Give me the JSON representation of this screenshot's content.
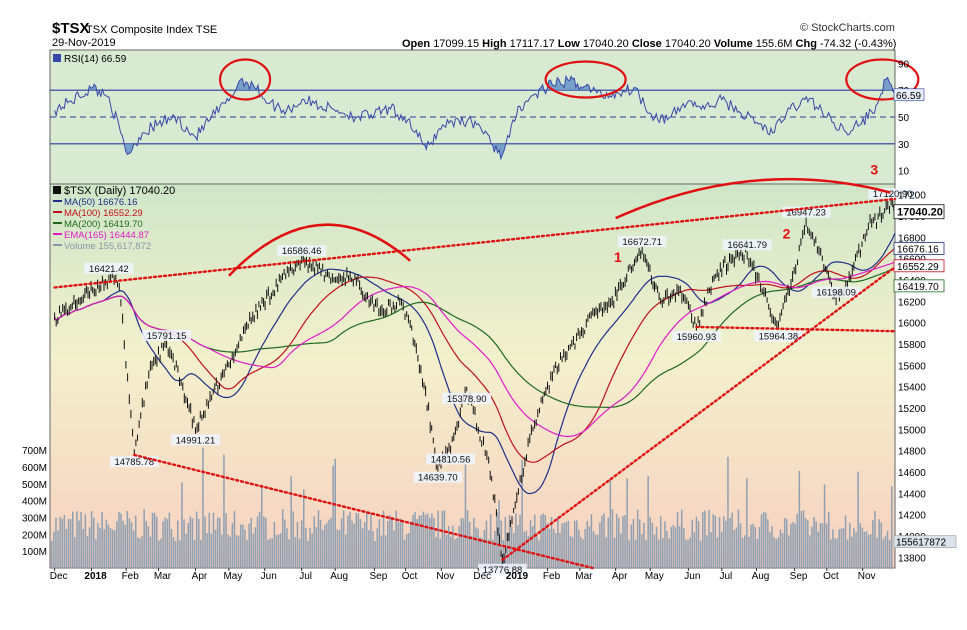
{
  "header": {
    "symbol": "$TSX",
    "name": "TSX Composite Index  TSE",
    "date": "29-Nov-2019",
    "open_label": "Open",
    "open": "17099.15",
    "high_label": "High",
    "high": "17117.17",
    "low_label": "Low",
    "low": "17040.20",
    "close_label": "Close",
    "close": "17040.20",
    "volume_label": "Volume",
    "volume": "155.6M",
    "chg_label": "Chg",
    "chg": "-74.32 (-0.43%)",
    "watermark": "© StockCharts.com"
  },
  "chart_data": [
    {
      "type": "line",
      "panel": "RSI",
      "legend": "RSI(14) 66.59",
      "last_value_label": "66.59",
      "yticks": [
        10,
        30,
        50,
        70,
        90
      ],
      "ylim": [
        0,
        100
      ],
      "overbought": 70,
      "oversold": 30,
      "midline": 50,
      "x": [
        "2017-12-01",
        "2017-12-15",
        "2018-01-03",
        "2018-01-17",
        "2018-02-02",
        "2018-02-15",
        "2018-03-01",
        "2018-03-15",
        "2018-04-02",
        "2018-04-16",
        "2018-05-01",
        "2018-05-11",
        "2018-05-22",
        "2018-06-05",
        "2018-06-20",
        "2018-07-05",
        "2018-07-20",
        "2018-08-03",
        "2018-08-20",
        "2018-09-04",
        "2018-09-18",
        "2018-10-03",
        "2018-10-19",
        "2018-11-02",
        "2018-11-16",
        "2018-12-03",
        "2018-12-14",
        "2018-12-24",
        "2019-01-08",
        "2019-01-22",
        "2019-02-05",
        "2019-02-20",
        "2019-03-06",
        "2019-03-20",
        "2019-04-03",
        "2019-04-17",
        "2019-05-02",
        "2019-05-16",
        "2019-06-03",
        "2019-06-17",
        "2019-07-02",
        "2019-07-17",
        "2019-08-01",
        "2019-08-15",
        "2019-08-30",
        "2019-09-16",
        "2019-10-01",
        "2019-10-16",
        "2019-10-31",
        "2019-11-14",
        "2019-11-21",
        "2019-11-29"
      ],
      "values": [
        55,
        62,
        72,
        65,
        22,
        38,
        45,
        50,
        35,
        50,
        62,
        78,
        74,
        60,
        55,
        63,
        58,
        55,
        50,
        52,
        56,
        48,
        26,
        44,
        48,
        45,
        30,
        22,
        58,
        67,
        74,
        77,
        73,
        66,
        68,
        72,
        52,
        48,
        62,
        56,
        63,
        54,
        46,
        38,
        56,
        64,
        50,
        40,
        45,
        60,
        78,
        66.59
      ]
    },
    {
      "type": "line",
      "panel": "price",
      "legend_main": "$TSX (Daily) 17040.20",
      "series": [
        {
          "name": "MA(50) 16676.16",
          "color": "#1f2f8a",
          "last": "16676.16"
        },
        {
          "name": "MA(100) 16552.29",
          "color": "#c0101a",
          "last": "16552.29"
        },
        {
          "name": "MA(200) 16419.70",
          "color": "#1f6a1f",
          "last": "16419.70"
        },
        {
          "name": "EMA(165) 16444.87",
          "color": "#e01cc8",
          "last": ""
        },
        {
          "name": "Volume 155,617,872",
          "color": "#8a97a8",
          "last": ""
        }
      ],
      "price_last_label": "17040.20",
      "yticks": [
        13800,
        14000,
        14200,
        14400,
        14600,
        14800,
        15000,
        15200,
        15400,
        15600,
        15800,
        16000,
        16200,
        16400,
        16600,
        16800,
        17000,
        17200
      ],
      "ylim": [
        13700,
        17300
      ],
      "x": [
        "2017-12-01",
        "2017-12-15",
        "2018-01-03",
        "2018-01-17",
        "2018-01-26",
        "2018-02-08",
        "2018-02-22",
        "2018-03-08",
        "2018-03-22",
        "2018-04-02",
        "2018-04-16",
        "2018-05-01",
        "2018-05-15",
        "2018-05-31",
        "2018-06-15",
        "2018-07-03",
        "2018-07-17",
        "2018-07-31",
        "2018-08-14",
        "2018-08-29",
        "2018-09-12",
        "2018-09-26",
        "2018-10-05",
        "2018-10-17",
        "2018-10-29",
        "2018-11-09",
        "2018-11-23",
        "2018-12-03",
        "2018-12-12",
        "2018-12-24",
        "2019-01-04",
        "2019-01-18",
        "2019-02-01",
        "2019-02-15",
        "2019-03-01",
        "2019-03-15",
        "2019-03-29",
        "2019-04-12",
        "2019-04-24",
        "2019-05-10",
        "2019-05-27",
        "2019-06-10",
        "2019-06-24",
        "2019-07-10",
        "2019-07-24",
        "2019-08-06",
        "2019-08-20",
        "2019-09-04",
        "2019-09-13",
        "2019-09-27",
        "2019-10-09",
        "2019-10-23",
        "2019-11-06",
        "2019-11-20",
        "2019-11-27",
        "2019-11-29"
      ],
      "values": [
        16050,
        16150,
        16300,
        16421,
        16350,
        14786,
        15600,
        15791,
        15400,
        14991,
        15300,
        15600,
        15950,
        16200,
        16400,
        16586,
        16500,
        16400,
        16450,
        16250,
        16100,
        16200,
        16000,
        15400,
        14640,
        14811,
        15379,
        15000,
        14700,
        13777,
        14300,
        15000,
        15400,
        15700,
        15900,
        16100,
        16200,
        16500,
        16672,
        16200,
        16300,
        15961,
        16400,
        16600,
        16642,
        16300,
        15964,
        16500,
        16947,
        16600,
        16198,
        16500,
        16900,
        17050,
        17120,
        17040
      ],
      "annotations": [
        {
          "label": "16421.42",
          "x": "2018-01-17",
          "y": 16421
        },
        {
          "label": "14785.78",
          "x": "2018-02-08",
          "y": 14786
        },
        {
          "label": "15791.15",
          "x": "2018-03-08",
          "y": 15791
        },
        {
          "label": "14991.21",
          "x": "2018-04-02",
          "y": 14991
        },
        {
          "label": "16586.46",
          "x": "2018-07-03",
          "y": 16586
        },
        {
          "label": "14639.70",
          "x": "2018-10-29",
          "y": 14640
        },
        {
          "label": "14810.56",
          "x": "2018-11-09",
          "y": 14811
        },
        {
          "label": "15378.90",
          "x": "2018-11-23",
          "y": 15379
        },
        {
          "label": "13776.88",
          "x": "2018-12-24",
          "y": 13777
        },
        {
          "label": "16672.71",
          "x": "2019-04-24",
          "y": 16672
        },
        {
          "label": "15960.93",
          "x": "2019-06-10",
          "y": 15961
        },
        {
          "label": "16641.79",
          "x": "2019-07-24",
          "y": 16642
        },
        {
          "label": "15964.38",
          "x": "2019-08-20",
          "y": 15964
        },
        {
          "label": "16947.23",
          "x": "2019-09-13",
          "y": 16947
        },
        {
          "label": "16198.09",
          "x": "2019-10-09",
          "y": 16198
        },
        {
          "label": "17120.90",
          "x": "2019-11-27",
          "y": 17120
        }
      ],
      "wave_labels": [
        "1",
        "2",
        "3"
      ]
    },
    {
      "type": "bar",
      "panel": "volume",
      "yticks_labels": [
        "100M",
        "200M",
        "300M",
        "400M",
        "500M",
        "600M",
        "700M"
      ],
      "yticks": [
        100,
        200,
        300,
        400,
        500,
        600,
        700
      ],
      "ylim": [
        0,
        760
      ],
      "last_value_label": "155617872"
    }
  ],
  "xaxis": {
    "labels": [
      "Dec",
      "2018",
      "Feb",
      "Mar",
      "Apr",
      "May",
      "Jun",
      "Jul",
      "Aug",
      "Sep",
      "Oct",
      "Nov",
      "Dec",
      "2019",
      "Feb",
      "Mar",
      "Apr",
      "May",
      "Jun",
      "Jul",
      "Aug",
      "Sep",
      "Oct",
      "Nov"
    ],
    "dates": [
      "2017-12-01",
      "2018-01-02",
      "2018-02-01",
      "2018-03-01",
      "2018-04-02",
      "2018-05-01",
      "2018-06-01",
      "2018-07-03",
      "2018-08-01",
      "2018-09-04",
      "2018-10-01",
      "2018-11-01",
      "2018-12-03",
      "2019-01-02",
      "2019-02-01",
      "2019-03-01",
      "2019-04-01",
      "2019-05-01",
      "2019-06-03",
      "2019-07-02",
      "2019-08-01",
      "2019-09-03",
      "2019-10-01",
      "2019-11-01"
    ]
  },
  "colors": {
    "rsi_bg": "#d9ead3",
    "price_bg_top": "#cfe6c9",
    "price_bg_mid": "#f3f0cc",
    "price_bg_bottom": "#f7d0c0",
    "rsi_line": "#3848a8",
    "annotation_red": "#e01010"
  }
}
